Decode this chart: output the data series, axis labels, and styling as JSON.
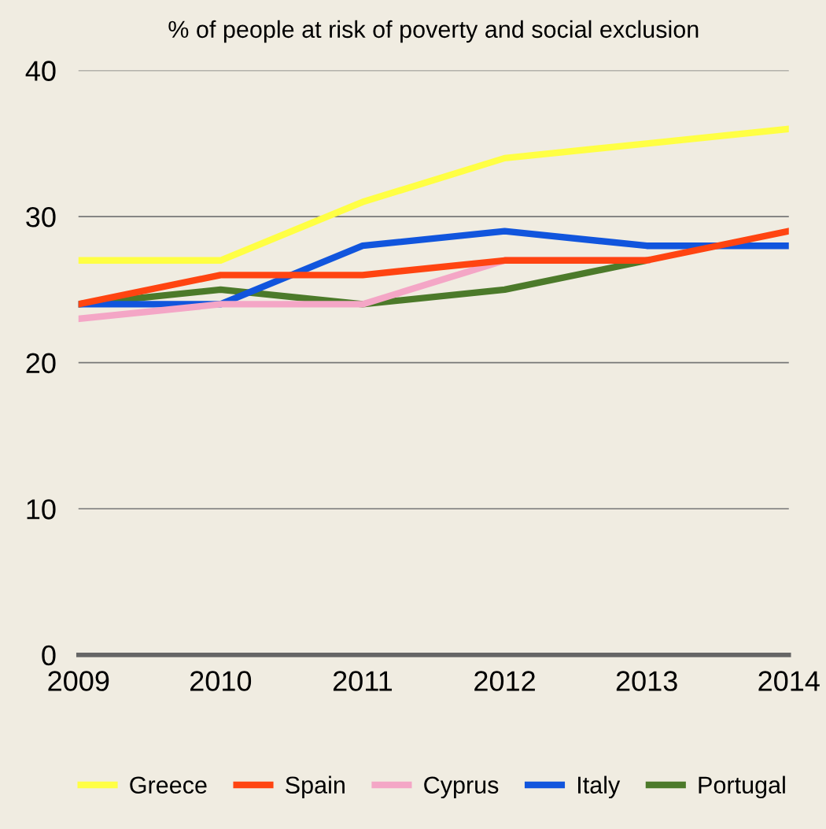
{
  "chart_data": {
    "type": "line",
    "title": "% of people at risk of poverty and social exclusion",
    "categories": [
      "2009",
      "2010",
      "2011",
      "2012",
      "2013",
      "2014"
    ],
    "series": [
      {
        "name": "Greece",
        "color": "#ffff44",
        "values": [
          27,
          27,
          31,
          34,
          35,
          36
        ]
      },
      {
        "name": "Spain",
        "color": "#ff4411",
        "values": [
          24,
          26,
          26,
          27,
          27,
          29
        ]
      },
      {
        "name": "Cyprus",
        "color": "#f4a6c6",
        "values": [
          23,
          24,
          24,
          27,
          27,
          null
        ]
      },
      {
        "name": "Italy",
        "color": "#1155dd",
        "values": [
          24,
          24,
          28,
          29,
          28,
          28
        ]
      },
      {
        "name": "Portugal",
        "color": "#4c7a2a",
        "values": [
          24,
          25,
          24,
          25,
          27,
          null
        ]
      }
    ],
    "ylim": [
      0,
      40
    ],
    "yticks": [
      0,
      10,
      20,
      30,
      40
    ],
    "grid": "y",
    "legend": "bottom",
    "marker": "none",
    "line_style": "solid"
  }
}
